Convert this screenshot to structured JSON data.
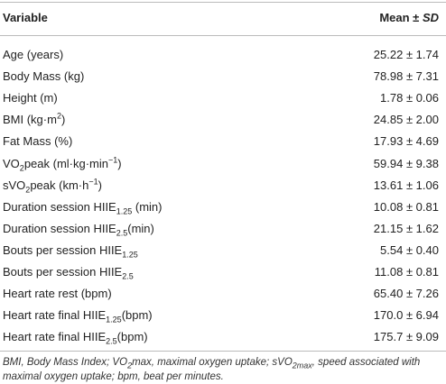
{
  "table": {
    "header": [
      [
        {
          "text": "Variable"
        }
      ],
      [
        {
          "text": "Mean ± "
        },
        {
          "em": "SD"
        }
      ]
    ],
    "rows": [
      {
        "label": [
          {
            "text": "Age (years)"
          }
        ],
        "value": "25.22 ± 1.74"
      },
      {
        "label": [
          {
            "text": "Body Mass (kg)"
          }
        ],
        "value": "78.98 ± 7.31"
      },
      {
        "label": [
          {
            "text": "Height (m)"
          }
        ],
        "value": "1.78 ± 0.06"
      },
      {
        "label": [
          {
            "text": "BMI (kg·m"
          },
          {
            "sup": "2"
          },
          {
            "text": ")"
          }
        ],
        "value": "24.85 ± 2.00"
      },
      {
        "label": [
          {
            "text": "Fat Mass (%)"
          }
        ],
        "value": "17.93 ± 4.69"
      },
      {
        "label": [
          {
            "text": "VO"
          },
          {
            "sub": "2"
          },
          {
            "text": "peak (ml·kg·min"
          },
          {
            "sup": "−1"
          },
          {
            "text": ")"
          }
        ],
        "value": "59.94 ± 9.38"
      },
      {
        "label": [
          {
            "text": "sVO"
          },
          {
            "sub": "2"
          },
          {
            "text": "peak (km·h"
          },
          {
            "sup": "−1"
          },
          {
            "text": ")"
          }
        ],
        "value": "13.61 ± 1.06"
      },
      {
        "label": [
          {
            "text": "Duration session HIIE"
          },
          {
            "sub": "1.25"
          },
          {
            "text": " (min)"
          }
        ],
        "value": "10.08 ± 0.81"
      },
      {
        "label": [
          {
            "text": "Duration session HIIE"
          },
          {
            "sub": "2.5"
          },
          {
            "text": "(min)"
          }
        ],
        "value": "21.15 ± 1.62"
      },
      {
        "label": [
          {
            "text": "Bouts per session HIIE"
          },
          {
            "sub": "1.25"
          }
        ],
        "value": "5.54 ± 0.40"
      },
      {
        "label": [
          {
            "text": "Bouts per session HIIE"
          },
          {
            "sub": "2.5"
          }
        ],
        "value": "11.08 ± 0.81"
      },
      {
        "label": [
          {
            "text": "Heart rate rest (bpm)"
          }
        ],
        "value": "65.40 ± 7.26"
      },
      {
        "label": [
          {
            "text": "Heart rate final HIIE"
          },
          {
            "sub": "1.25"
          },
          {
            "text": "(bpm)"
          }
        ],
        "value": "170.0 ± 6.94"
      },
      {
        "label": [
          {
            "text": "Heart rate final HIIE"
          },
          {
            "sub": "2.5"
          },
          {
            "text": "(bpm)"
          }
        ],
        "value": "175.7 ± 9.09"
      }
    ],
    "footnote": [
      {
        "text": "BMI, Body Mass Index; VO"
      },
      {
        "sub": "2"
      },
      {
        "text": "max, maximal oxygen uptake; sVO"
      },
      {
        "sub": "2max"
      },
      {
        "text": ", speed associated with maximal oxygen uptake; bpm, beat per minutes."
      }
    ]
  }
}
